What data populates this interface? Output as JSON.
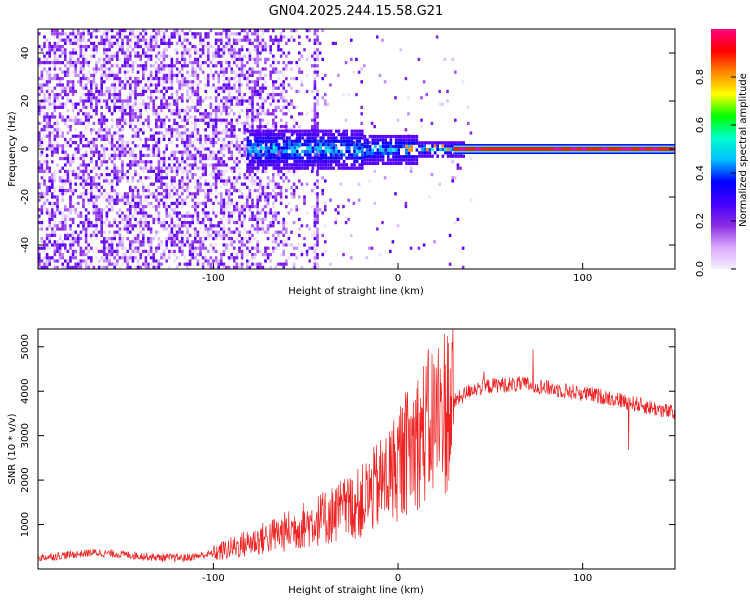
{
  "title": "GN04.2025.244.15.58.G21",
  "chart_data": [
    {
      "type": "heatmap",
      "xlabel": "Height of straight line (km)",
      "ylabel": "Frequency (Hz)",
      "xlim": [
        -195,
        150
      ],
      "ylim": [
        -50,
        50
      ],
      "xticks": [
        -100,
        0,
        100
      ],
      "yticks": [
        -40,
        -20,
        0,
        20,
        40
      ],
      "colorbar": {
        "label": "Normalized spectral amplitude",
        "range": [
          0,
          1
        ],
        "ticks": [
          "0.0",
          "0.2",
          "0.4",
          "0.6",
          "0.8"
        ],
        "tick_values": [
          0.0,
          0.2,
          0.4,
          0.6,
          0.8
        ],
        "colormap": [
          "#f7f0ff",
          "#d9a8ff",
          "#8a2be2",
          "#4400ff",
          "#0000ff",
          "#00bfff",
          "#00ffcc",
          "#00ff00",
          "#ffff00",
          "#ff8800",
          "#ff0000",
          "#ff0080"
        ]
      },
      "features": {
        "broadband_noise_end_km": -40,
        "carrier_start_km": 30,
        "carrier_frequency_hz": 0
      }
    },
    {
      "type": "line",
      "xlabel": "Height of straight line (km)",
      "ylabel": "SNR (10 * v/v)",
      "xlim": [
        -195,
        150
      ],
      "ylim": [
        0,
        5400
      ],
      "xticks": [
        -100,
        0,
        100
      ],
      "yticks": [
        1000,
        2000,
        3000,
        4000,
        5000
      ],
      "color": "#ee2222",
      "envelope": {
        "x": [
          -195,
          -165,
          -150,
          -130,
          -115,
          -100,
          -80,
          -60,
          -40,
          -20,
          -5,
          10,
          25,
          40,
          55,
          70,
          85,
          100,
          115,
          130,
          150
        ],
        "y": [
          250,
          370,
          330,
          260,
          250,
          350,
          600,
          850,
          1150,
          1500,
          2100,
          2900,
          3600,
          4050,
          4150,
          4150,
          4050,
          3950,
          3850,
          3700,
          3500
        ]
      }
    }
  ]
}
